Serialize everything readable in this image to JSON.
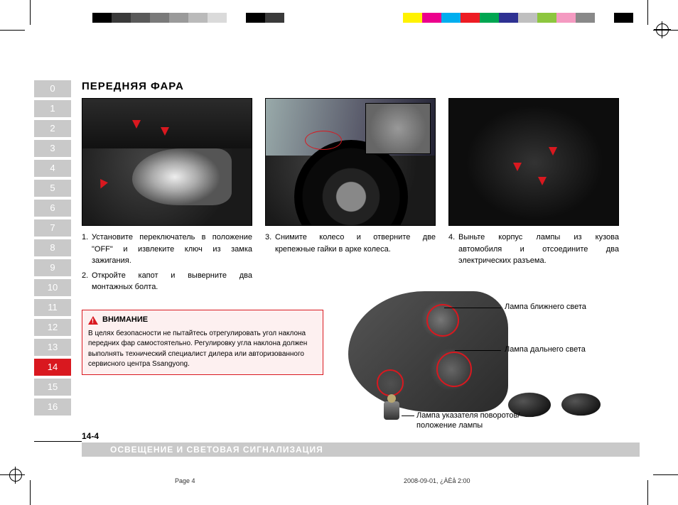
{
  "swatches": {
    "left": [
      "#000000",
      "#3a3a3a",
      "#5a5a5a",
      "#7a7a7a",
      "#9a9a9a",
      "#bababa",
      "#dadada",
      "#ffffff",
      "#000000",
      "#3a3a3a"
    ],
    "right": [
      "#ffffff",
      "#fff200",
      "#ec008c",
      "#00aeef",
      "#ed1c24",
      "#00a651",
      "#2e3192",
      "#bfbfbf",
      "#8dc63f",
      "#f49ac1",
      "#898989",
      "#ffffff",
      "#000000"
    ]
  },
  "tabs": {
    "items": [
      "0",
      "1",
      "2",
      "3",
      "4",
      "5",
      "6",
      "7",
      "8",
      "9",
      "10",
      "11",
      "12",
      "13",
      "14",
      "15",
      "16"
    ],
    "active_index": 14
  },
  "title": "ПЕРЕДНЯЯ ФАРА",
  "steps": {
    "col1": [
      {
        "n": "1.",
        "text": "Установите переключатель в положение \"OFF\" и извлеките ключ из замка зажигания."
      },
      {
        "n": "2.",
        "text": "Откройте капот и выверните два монтажных болта."
      }
    ],
    "col2": [
      {
        "n": "3.",
        "text": "Снимите колесо и отверните две крепежные гайки в арке колеса."
      }
    ],
    "col3": [
      {
        "n": "4.",
        "text": "Выньте корпус лампы из кузова автомобиля и отсоедините два электрических разъема."
      }
    ]
  },
  "warning": {
    "title": "ВНИМАНИЕ",
    "text": "В целях безопасности не пытайтесь отрегулировать угол наклона передних фар самостоятельно. Регулировку угла наклона должен выполнять технический специалист дилера или авторизованного сервисного центра Ssangyong."
  },
  "callouts": {
    "low_beam": "Лампа ближнего света",
    "high_beam": "Лампа дальнего света",
    "turn_pos": "Лампа указателя поворотов/положение лампы"
  },
  "footer": {
    "page_no": "14-4",
    "section": "ОСВЕЩЕНИЕ И СВЕТОВАЯ СИГНАЛИЗАЦИЯ",
    "page_label": "Page 4",
    "date": "2008-09-01, ¿ÀÈå 2:00"
  }
}
